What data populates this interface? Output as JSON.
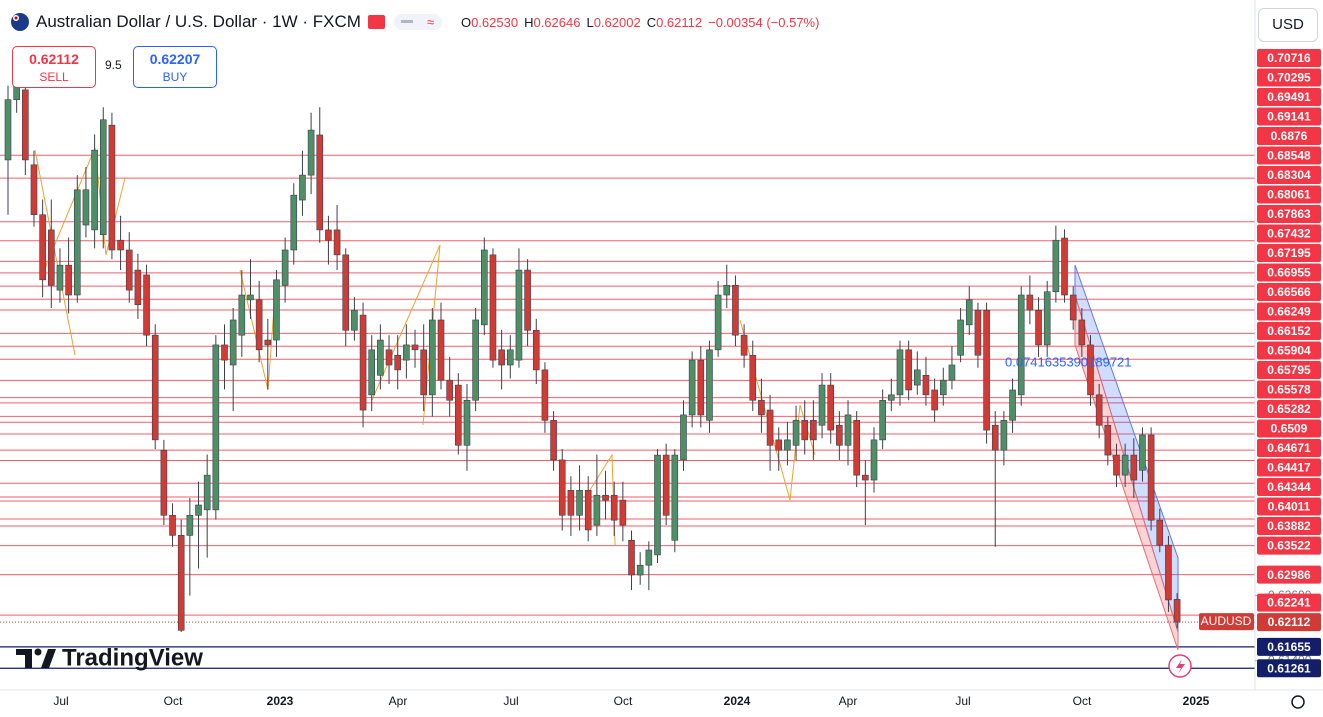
{
  "header": {
    "title": "Australian Dollar / U.S. Dollar · 1W · FXCM",
    "ohlc": [
      {
        "key": "O",
        "value": "0.62530"
      },
      {
        "key": "H",
        "value": "0.62646"
      },
      {
        "key": "L",
        "value": "0.62002"
      },
      {
        "key": "C",
        "value": "0.62112"
      }
    ],
    "change": "−0.00354 (−0.57%)",
    "currency": "USD",
    "sell_price": "0.62112",
    "sell_label": "SELL",
    "spread": "9.5",
    "buy_price": "0.62207",
    "buy_label": "BUY",
    "branding": "TradingView"
  },
  "chart_data": {
    "type": "candlestick",
    "symbol_label": "AUDUSD",
    "last_price": 0.62112,
    "annotation": "0.0741635390189721",
    "ylim": [
      0.6086,
      0.7343
    ],
    "yticks": [
      {
        "value": 0.626,
        "label": "0.62600"
      },
      {
        "value": 0.614,
        "label": "0.61400"
      }
    ],
    "levels": [
      0.70716,
      0.70295,
      0.69491,
      0.69141,
      0.6876,
      0.68548,
      0.68304,
      0.68061,
      0.67863,
      0.67432,
      0.67195,
      0.66955,
      0.66566,
      0.66249,
      0.66152,
      0.65904,
      0.65795,
      0.65578,
      0.65282,
      0.6509,
      0.64671,
      0.64417,
      0.64344,
      0.64011,
      0.63882,
      0.63522,
      0.62986,
      0.62241
    ],
    "level_color": "#f23645",
    "support_levels": [
      0.61655,
      0.61261
    ],
    "support_color": "#131e6b",
    "up_color": "#4f8f67",
    "down_color": "#d13b35",
    "x_labels": [
      "Jul",
      "Oct",
      "2023",
      "Apr",
      "Jul",
      "Oct",
      "2024",
      "Apr",
      "Jul",
      "Oct",
      "2025"
    ],
    "candles": [
      [
        0.7063,
        0.72,
        0.6962,
        0.7174
      ],
      [
        0.7174,
        0.723,
        0.715,
        0.7201
      ],
      [
        0.7192,
        0.7211,
        0.7035,
        0.7063
      ],
      [
        0.7054,
        0.708,
        0.694,
        0.6962
      ],
      [
        0.6962,
        0.699,
        0.681,
        0.6842
      ],
      [
        0.6934,
        0.699,
        0.679,
        0.6832
      ],
      [
        0.6823,
        0.69,
        0.68,
        0.6869
      ],
      [
        0.6869,
        0.692,
        0.678,
        0.6814
      ],
      [
        0.6814,
        0.7035,
        0.68,
        0.7008
      ],
      [
        0.6943,
        0.705,
        0.692,
        0.7008
      ],
      [
        0.6934,
        0.711,
        0.69,
        0.7081
      ],
      [
        0.6925,
        0.716,
        0.69,
        0.7137
      ],
      [
        0.7127,
        0.715,
        0.688,
        0.6897
      ],
      [
        0.6915,
        0.696,
        0.686,
        0.6897
      ],
      [
        0.6897,
        0.693,
        0.68,
        0.6823
      ],
      [
        0.686,
        0.689,
        0.677,
        0.6796
      ],
      [
        0.6851,
        0.687,
        0.672,
        0.674
      ],
      [
        0.674,
        0.676,
        0.653,
        0.6547
      ],
      [
        0.6528,
        0.6547,
        0.639,
        0.6408
      ],
      [
        0.6408,
        0.643,
        0.635,
        0.6371
      ],
      [
        0.6371,
        0.64,
        0.6193,
        0.6196
      ],
      [
        0.6371,
        0.644,
        0.626,
        0.6408
      ],
      [
        0.6408,
        0.647,
        0.631,
        0.6427
      ],
      [
        0.6418,
        0.652,
        0.633,
        0.6482
      ],
      [
        0.6418,
        0.674,
        0.64,
        0.6722
      ],
      [
        0.6722,
        0.676,
        0.664,
        0.6694
      ],
      [
        0.6685,
        0.679,
        0.66,
        0.6768
      ],
      [
        0.674,
        0.686,
        0.67,
        0.6814
      ],
      [
        0.6805,
        0.688,
        0.677,
        0.6814
      ],
      [
        0.6805,
        0.684,
        0.669,
        0.6713
      ],
      [
        0.6731,
        0.677,
        0.664,
        0.6722
      ],
      [
        0.6731,
        0.686,
        0.67,
        0.6842
      ],
      [
        0.6832,
        0.692,
        0.68,
        0.6897
      ],
      [
        0.6897,
        0.702,
        0.687,
        0.6998
      ],
      [
        0.6989,
        0.708,
        0.696,
        0.7035
      ],
      [
        0.7035,
        0.715,
        0.7,
        0.7118
      ],
      [
        0.7109,
        0.716,
        0.691,
        0.6934
      ],
      [
        0.6934,
        0.696,
        0.687,
        0.6915
      ],
      [
        0.6934,
        0.698,
        0.686,
        0.6888
      ],
      [
        0.6888,
        0.69,
        0.672,
        0.6749
      ],
      [
        0.6749,
        0.681,
        0.673,
        0.6786
      ],
      [
        0.6777,
        0.68,
        0.657,
        0.6602
      ],
      [
        0.663,
        0.674,
        0.66,
        0.6713
      ],
      [
        0.6666,
        0.676,
        0.664,
        0.6731
      ],
      [
        0.6713,
        0.674,
        0.665,
        0.6685
      ],
      [
        0.6703,
        0.674,
        0.664,
        0.6676
      ],
      [
        0.6694,
        0.676,
        0.666,
        0.6722
      ],
      [
        0.6722,
        0.675,
        0.668,
        0.6713
      ],
      [
        0.6713,
        0.676,
        0.66,
        0.663
      ],
      [
        0.663,
        0.679,
        0.659,
        0.6768
      ],
      [
        0.6768,
        0.68,
        0.664,
        0.6657
      ],
      [
        0.6657,
        0.67,
        0.659,
        0.662
      ],
      [
        0.6648,
        0.667,
        0.652,
        0.6537
      ],
      [
        0.6537,
        0.665,
        0.649,
        0.662
      ],
      [
        0.662,
        0.679,
        0.66,
        0.6768
      ],
      [
        0.6759,
        0.692,
        0.674,
        0.6897
      ],
      [
        0.6888,
        0.69,
        0.668,
        0.6694
      ],
      [
        0.6713,
        0.675,
        0.664,
        0.6685
      ],
      [
        0.6685,
        0.674,
        0.666,
        0.6713
      ],
      [
        0.6694,
        0.69,
        0.668,
        0.686
      ],
      [
        0.686,
        0.688,
        0.672,
        0.6749
      ],
      [
        0.6749,
        0.677,
        0.665,
        0.6676
      ],
      [
        0.6676,
        0.669,
        0.656,
        0.6583
      ],
      [
        0.6583,
        0.66,
        0.649,
        0.651
      ],
      [
        0.651,
        0.653,
        0.638,
        0.6408
      ],
      [
        0.6454,
        0.648,
        0.637,
        0.6408
      ],
      [
        0.6408,
        0.65,
        0.638,
        0.6454
      ],
      [
        0.6454,
        0.648,
        0.636,
        0.6381
      ],
      [
        0.639,
        0.652,
        0.637,
        0.6445
      ],
      [
        0.6445,
        0.649,
        0.64,
        0.6436
      ],
      [
        0.6445,
        0.647,
        0.637,
        0.6399
      ],
      [
        0.6436,
        0.647,
        0.636,
        0.639
      ],
      [
        0.6362,
        0.638,
        0.627,
        0.6298
      ],
      [
        0.6298,
        0.634,
        0.628,
        0.6316
      ],
      [
        0.6316,
        0.636,
        0.627,
        0.6344
      ],
      [
        0.6335,
        0.653,
        0.632,
        0.6519
      ],
      [
        0.6519,
        0.654,
        0.639,
        0.6408
      ],
      [
        0.6362,
        0.653,
        0.634,
        0.6519
      ],
      [
        0.651,
        0.662,
        0.649,
        0.6593
      ],
      [
        0.6593,
        0.671,
        0.657,
        0.6694
      ],
      [
        0.6694,
        0.672,
        0.657,
        0.6593
      ],
      [
        0.6583,
        0.673,
        0.656,
        0.6713
      ],
      [
        0.6713,
        0.684,
        0.67,
        0.6814
      ],
      [
        0.6814,
        0.687,
        0.679,
        0.6832
      ],
      [
        0.6832,
        0.685,
        0.672,
        0.674
      ],
      [
        0.674,
        0.676,
        0.668,
        0.6703
      ],
      [
        0.6703,
        0.673,
        0.66,
        0.662
      ],
      [
        0.662,
        0.666,
        0.656,
        0.6593
      ],
      [
        0.6602,
        0.663,
        0.649,
        0.6537
      ],
      [
        0.6547,
        0.657,
        0.649,
        0.6528
      ],
      [
        0.6528,
        0.658,
        0.65,
        0.6547
      ],
      [
        0.6537,
        0.661,
        0.651,
        0.6583
      ],
      [
        0.6583,
        0.662,
        0.652,
        0.6547
      ],
      [
        0.6583,
        0.662,
        0.651,
        0.6547
      ],
      [
        0.6574,
        0.667,
        0.655,
        0.6648
      ],
      [
        0.6648,
        0.667,
        0.654,
        0.6565
      ],
      [
        0.6574,
        0.66,
        0.651,
        0.6537
      ],
      [
        0.6537,
        0.662,
        0.65,
        0.6593
      ],
      [
        0.6583,
        0.66,
        0.646,
        0.6482
      ],
      [
        0.6482,
        0.651,
        0.639,
        0.6473
      ],
      [
        0.6473,
        0.657,
        0.645,
        0.6547
      ],
      [
        0.6547,
        0.664,
        0.653,
        0.662
      ],
      [
        0.662,
        0.666,
        0.66,
        0.663
      ],
      [
        0.663,
        0.673,
        0.661,
        0.6713
      ],
      [
        0.6713,
        0.673,
        0.662,
        0.6639
      ],
      [
        0.6648,
        0.671,
        0.663,
        0.6676
      ],
      [
        0.6666,
        0.67,
        0.661,
        0.663
      ],
      [
        0.6639,
        0.666,
        0.658,
        0.6602
      ],
      [
        0.663,
        0.668,
        0.661,
        0.6657
      ],
      [
        0.6657,
        0.672,
        0.664,
        0.6685
      ],
      [
        0.6703,
        0.679,
        0.669,
        0.6768
      ],
      [
        0.6759,
        0.683,
        0.674,
        0.6805
      ],
      [
        0.6786,
        0.68,
        0.668,
        0.6703
      ],
      [
        0.6786,
        0.68,
        0.654,
        0.6565
      ],
      [
        0.6574,
        0.66,
        0.635,
        0.6528
      ],
      [
        0.6528,
        0.66,
        0.65,
        0.6583
      ],
      [
        0.6583,
        0.666,
        0.656,
        0.6639
      ],
      [
        0.663,
        0.683,
        0.661,
        0.6814
      ],
      [
        0.6814,
        0.685,
        0.676,
        0.6786
      ],
      [
        0.6786,
        0.681,
        0.67,
        0.6722
      ],
      [
        0.6722,
        0.684,
        0.67,
        0.682
      ],
      [
        0.682,
        0.6942,
        0.68,
        0.6915
      ],
      [
        0.6919,
        0.6935,
        0.68,
        0.6814
      ],
      [
        0.6814,
        0.683,
        0.675,
        0.6768
      ],
      [
        0.6768,
        0.679,
        0.67,
        0.6722
      ],
      [
        0.6722,
        0.674,
        0.661,
        0.663
      ],
      [
        0.663,
        0.665,
        0.655,
        0.6574
      ],
      [
        0.6574,
        0.659,
        0.65,
        0.6519
      ],
      [
        0.6519,
        0.654,
        0.646,
        0.6482
      ],
      [
        0.6482,
        0.654,
        0.646,
        0.6519
      ],
      [
        0.6519,
        0.655,
        0.644,
        0.6473
      ],
      [
        0.6491,
        0.657,
        0.647,
        0.6556
      ],
      [
        0.6556,
        0.657,
        0.638,
        0.6399
      ],
      [
        0.6399,
        0.642,
        0.634,
        0.6353
      ],
      [
        0.6353,
        0.637,
        0.623,
        0.6252
      ],
      [
        0.6253,
        0.62646,
        0.62002,
        0.62112
      ]
    ]
  }
}
